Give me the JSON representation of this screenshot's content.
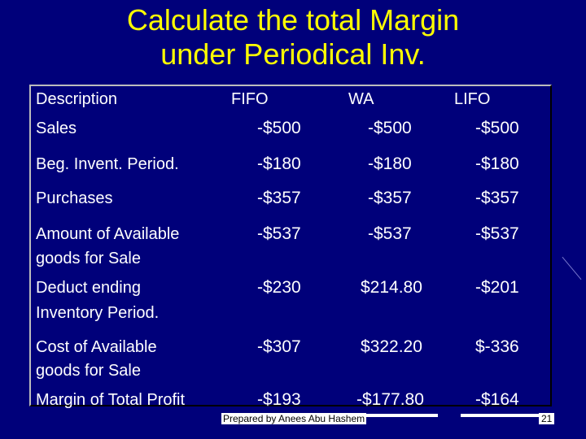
{
  "title": {
    "line1": "Calculate the total Margin",
    "line2": "under Periodical Inv."
  },
  "table": {
    "headers": [
      "Description",
      "FIFO",
      "WA",
      "LIFO"
    ],
    "rows": [
      {
        "label_lines": [
          "Sales"
        ],
        "values": [
          "-$500",
          "-$500",
          "-$500"
        ]
      },
      {
        "label_lines": [
          "Beg. Invent. Period."
        ],
        "values": [
          "-$180",
          "-$180",
          "-$180"
        ]
      },
      {
        "label_lines": [
          "Purchases"
        ],
        "values": [
          "-$357",
          "-$357",
          "-$357"
        ]
      },
      {
        "label_lines": [
          "Amount of Available",
          "goods for Sale"
        ],
        "values": [
          "-$537",
          "-$537",
          "-$537"
        ]
      },
      {
        "label_lines": [
          "Deduct ending",
          "Inventory Period."
        ],
        "values": [
          "-$230",
          "$214.80",
          "-$201"
        ]
      },
      {
        "label_lines": [
          "Cost of  Available",
          "goods  for Sale"
        ],
        "values": [
          "-$307",
          "$322.20",
          "$-336"
        ]
      },
      {
        "label_lines": [
          "Margin of Total Profit"
        ],
        "values": [
          "-$193",
          "-$177.80",
          "-$164"
        ]
      }
    ]
  },
  "footer": {
    "prepared_by": "Prepared by Anees Abu Hashem",
    "page_number": "21"
  },
  "colors": {
    "background": "#00007a",
    "title": "#ffff00",
    "text": "#ffffff"
  }
}
